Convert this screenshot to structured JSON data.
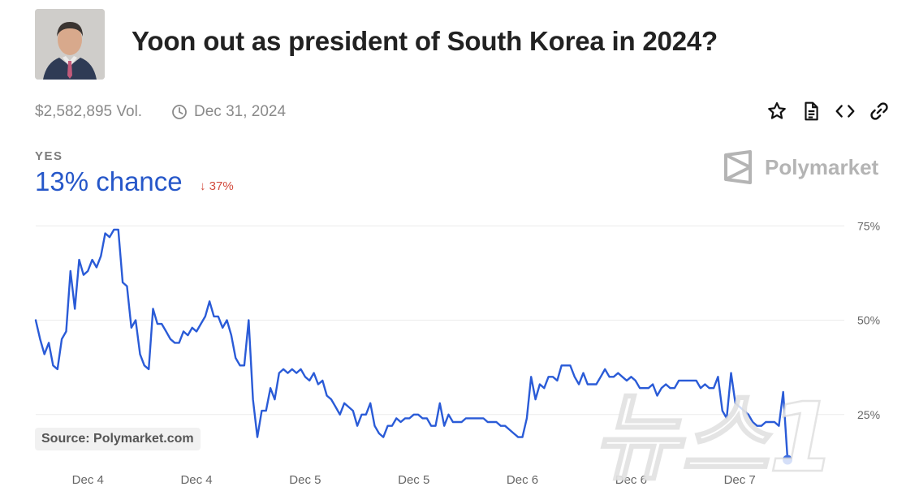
{
  "header": {
    "title": "Yoon out as president of South Korea in 2024?",
    "avatar_icon": "portrait-photo",
    "volume": "$2,582,895 Vol.",
    "end_date": "Dec 31, 2024",
    "clock_icon": "clock-icon",
    "tools": [
      "star-icon",
      "document-icon",
      "embed-code-icon",
      "link-icon"
    ]
  },
  "outcome": {
    "label": "YES",
    "chance": "13% chance",
    "change": "37%",
    "change_icon": "arrow-down-icon"
  },
  "brand": {
    "name": "Polymarket"
  },
  "source": "Source: Polymarket.com",
  "watermark": "뉴스1",
  "colors": {
    "line": "#2a5bd7",
    "chance_text": "#2657c9",
    "change_down": "#d24a3c"
  },
  "chart_data": {
    "type": "line",
    "ylim": [
      0,
      100
    ],
    "y_ticks": [
      "75%",
      "50%",
      "25%"
    ],
    "y_tick_values": [
      75,
      50,
      25
    ],
    "x_tick_labels": [
      "Dec 4",
      "Dec 4",
      "Dec 5",
      "Dec 5",
      "Dec 6",
      "Dec 6",
      "Dec 7"
    ],
    "x_tick_positions": [
      12,
      37,
      62,
      87,
      112,
      137,
      162
    ],
    "grid": true,
    "x_range": [
      0,
      187
    ],
    "series": [
      {
        "values": [
          50,
          45,
          41,
          44,
          38,
          37,
          45,
          47,
          63,
          53,
          66,
          62,
          63,
          66,
          64,
          67,
          73,
          72,
          74,
          74,
          60,
          59,
          48,
          50,
          41,
          38,
          37,
          53,
          49,
          49,
          47,
          45,
          44,
          44,
          47,
          46,
          48,
          47,
          49,
          51,
          55,
          51,
          51,
          48,
          50,
          46,
          40,
          38,
          38,
          50,
          29,
          19,
          26,
          26,
          32,
          29,
          36,
          37,
          36,
          37,
          36,
          37,
          35,
          34,
          36,
          33,
          34,
          30,
          29,
          27,
          25,
          28,
          27,
          26,
          22,
          25,
          25,
          28,
          22,
          20,
          19,
          22,
          22,
          24,
          23,
          24,
          24,
          25,
          25,
          24,
          24,
          22,
          22,
          28,
          22,
          25,
          23,
          23,
          23,
          24,
          24,
          24,
          24,
          24,
          23,
          23,
          23,
          22,
          22,
          21,
          20,
          19,
          19,
          24,
          35,
          29,
          33,
          32,
          35,
          35,
          34,
          38,
          38,
          38,
          35,
          33,
          36,
          33,
          33,
          33,
          35,
          37,
          35,
          35,
          36,
          35,
          34,
          35,
          34,
          32,
          32,
          32,
          33,
          30,
          32,
          33,
          32,
          32,
          34,
          34,
          34,
          34,
          34,
          32,
          33,
          32,
          32,
          35,
          26,
          24,
          36,
          28,
          27,
          26,
          25,
          23,
          22,
          22,
          23,
          23,
          23,
          22,
          31,
          13
        ]
      }
    ],
    "last_point": 13
  }
}
